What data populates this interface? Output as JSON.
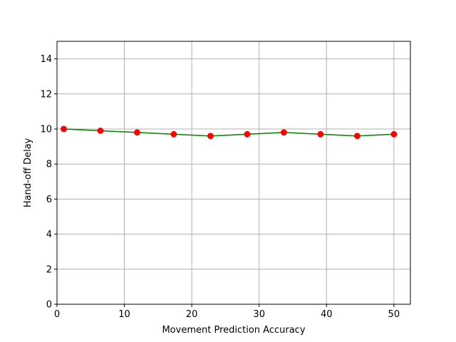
{
  "chart_data": {
    "type": "line",
    "title": "",
    "xlabel": "Movement Prediction Accuracy",
    "ylabel": "Hand-off Delay",
    "xlim": [
      0,
      52.45
    ],
    "ylim": [
      0,
      15
    ],
    "xticks": [
      0,
      10,
      20,
      30,
      40,
      50
    ],
    "yticks": [
      0,
      2,
      4,
      6,
      8,
      10,
      12,
      14
    ],
    "grid": true,
    "legend": "none",
    "line_color": "#008000",
    "marker_color": "#ff0000",
    "series": [
      {
        "x": [
          1,
          6.44,
          11.89,
          17.33,
          22.78,
          28.22,
          33.67,
          39.11,
          44.56,
          50
        ],
        "y": [
          10.0,
          9.9,
          9.8,
          9.7,
          9.6,
          9.7,
          9.8,
          9.7,
          9.6,
          9.7
        ]
      }
    ]
  }
}
